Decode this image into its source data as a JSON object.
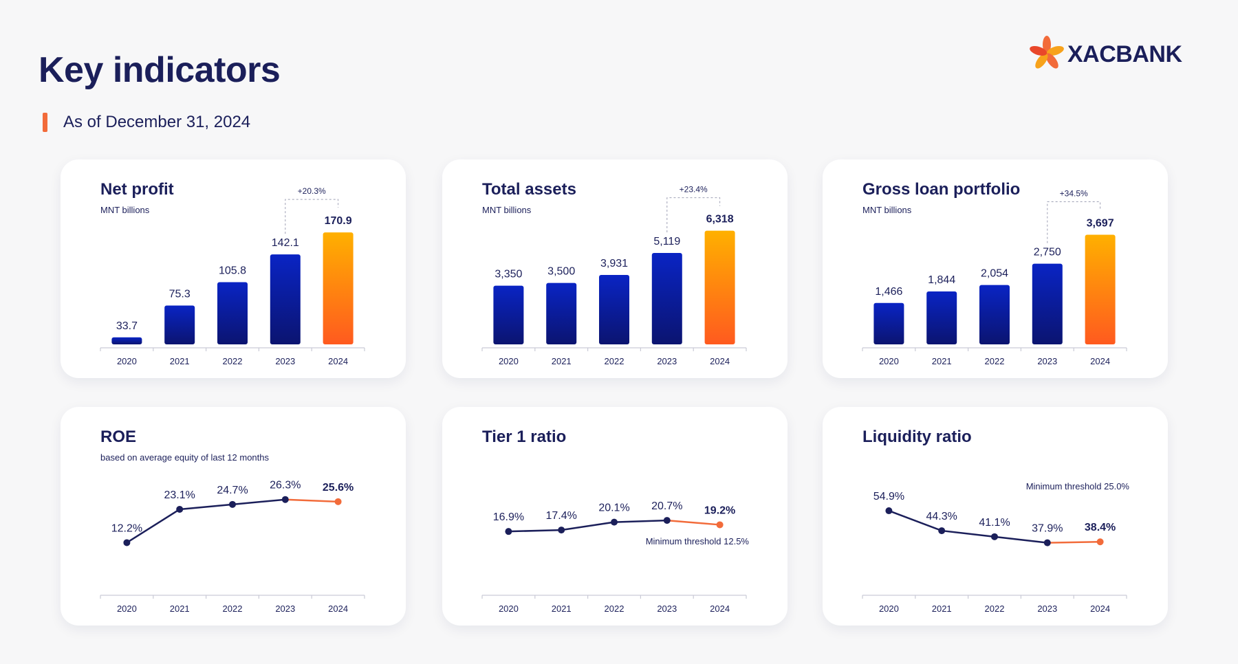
{
  "header": {
    "title": "Key indicators",
    "subtitle": "As of December 31, 2024",
    "logo_text": "XACBANK"
  },
  "colors": {
    "navy": "#1b1f5a",
    "bar_blue_top": "#0a24c4",
    "bar_blue_bottom": "#0b1470",
    "bar_orange_top": "#ffb000",
    "bar_orange_bottom": "#ff5a1f",
    "line_orange": "#f26b3a",
    "accent": "#f26b3a"
  },
  "chart_data": [
    {
      "id": "net-profit",
      "type": "bar",
      "title": "Net profit",
      "subtitle": "MNT billions",
      "categories": [
        "2020",
        "2021",
        "2022",
        "2023",
        "2024"
      ],
      "values": [
        33.7,
        75.3,
        105.8,
        142.1,
        170.9
      ],
      "labels": [
        "33.7",
        "75.3",
        "105.8",
        "142.1",
        "170.9"
      ],
      "ylim": [
        20,
        180
      ],
      "highlight_last": true,
      "growth_label": "+20.3%"
    },
    {
      "id": "total-assets",
      "type": "bar",
      "title": "Total assets",
      "subtitle": "MNT billions",
      "categories": [
        "2020",
        "2021",
        "2022",
        "2023",
        "2024"
      ],
      "values": [
        3350,
        3500,
        3931,
        5119,
        6318
      ],
      "labels": [
        "3,350",
        "3,500",
        "3,931",
        "5,119",
        "6,318"
      ],
      "ylim": [
        0,
        6600
      ],
      "highlight_last": true,
      "growth_label": "+23.4%"
    },
    {
      "id": "gross-loan-portfolio",
      "type": "bar",
      "title": "Gross loan portfolio",
      "subtitle": "MNT billions",
      "categories": [
        "2020",
        "2021",
        "2022",
        "2023",
        "2024"
      ],
      "values": [
        1466,
        1844,
        2054,
        2750,
        3697
      ],
      "labels": [
        "1,466",
        "1,844",
        "2,054",
        "2,750",
        "3,697"
      ],
      "ylim": [
        0,
        4000
      ],
      "highlight_last": true,
      "growth_label": "+34.5%"
    },
    {
      "id": "roe",
      "type": "line",
      "title": "ROE",
      "subtitle": "based on average equity of last 12 months",
      "categories": [
        "2020",
        "2021",
        "2022",
        "2023",
        "2024"
      ],
      "values": [
        12.2,
        23.1,
        24.7,
        26.3,
        25.6
      ],
      "labels": [
        "12.2%",
        "23.1%",
        "24.7%",
        "26.3%",
        "25.6%"
      ],
      "ylim": [
        -5,
        35
      ],
      "highlight_last": true,
      "threshold_label": ""
    },
    {
      "id": "tier1-ratio",
      "type": "line",
      "title": "Tier 1 ratio",
      "subtitle": "",
      "categories": [
        "2020",
        "2021",
        "2022",
        "2023",
        "2024"
      ],
      "values": [
        16.9,
        17.4,
        20.1,
        20.7,
        19.2
      ],
      "labels": [
        "16.9%",
        "17.4%",
        "20.1%",
        "20.7%",
        "19.2%"
      ],
      "ylim": [
        -5,
        37
      ],
      "highlight_last": true,
      "threshold_label": "Minimum threshold 12.5%"
    },
    {
      "id": "liquidity-ratio",
      "type": "line",
      "title": "Liquidity ratio",
      "subtitle": "",
      "categories": [
        "2020",
        "2021",
        "2022",
        "2023",
        "2024"
      ],
      "values": [
        54.9,
        44.3,
        41.1,
        37.9,
        38.4
      ],
      "labels": [
        "54.9%",
        "44.3%",
        "41.1%",
        "37.9%",
        "38.4%"
      ],
      "ylim": [
        10,
        75
      ],
      "highlight_last": true,
      "threshold_label": "Minimum threshold 25.0%"
    }
  ]
}
